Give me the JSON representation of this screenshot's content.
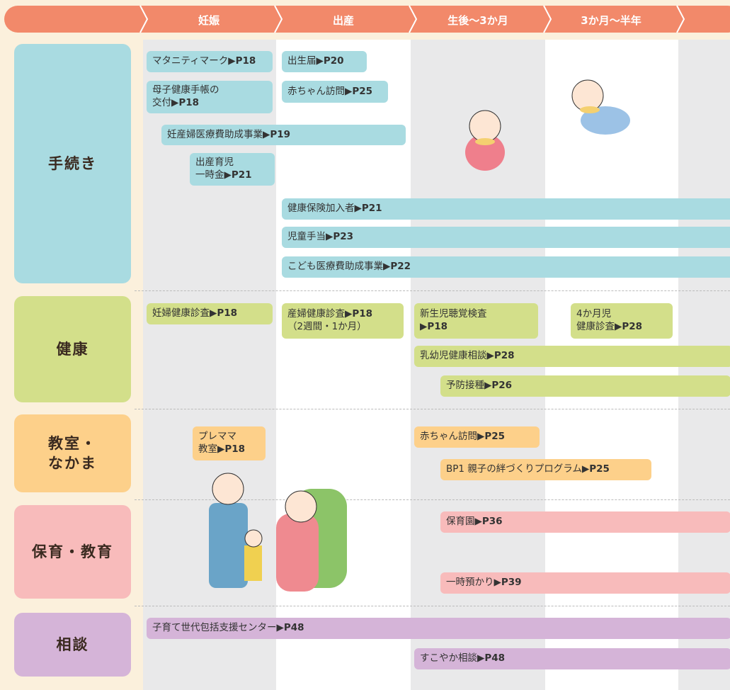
{
  "header": {
    "columns": [
      "妊娠",
      "出産",
      "生後～3か月",
      "3か月～半年"
    ]
  },
  "rows": [
    {
      "label": "手続き",
      "items": [
        {
          "text": "マタニティマーク",
          "ref": "▶P18"
        },
        {
          "text": "出生届",
          "ref": "▶P20"
        },
        {
          "text": "母子健康手帳の\n交付",
          "ref": "▶P18"
        },
        {
          "text": "赤ちゃん訪問",
          "ref": "▶P25"
        },
        {
          "text": "妊産婦医療費助成事業",
          "ref": "▶P19"
        },
        {
          "text": "出産育児\n一時金",
          "ref": "▶P21"
        },
        {
          "text": "健康保険加入者",
          "ref": "▶P21"
        },
        {
          "text": "児童手当",
          "ref": "▶P23"
        },
        {
          "text": "こども医療費助成事業",
          "ref": "▶P22"
        }
      ]
    },
    {
      "label": "健康",
      "items": [
        {
          "text": "妊婦健康診査",
          "ref": "▶P18"
        },
        {
          "text": "産婦健康診査",
          "ref": "▶P18",
          "note": "（2週間・1か月）"
        },
        {
          "text": "新生児聴覚検査\n",
          "ref": "▶P18"
        },
        {
          "text": "4か月児\n健康診査",
          "ref": "▶P28"
        },
        {
          "text": "乳幼児健康相談",
          "ref": "▶P28"
        },
        {
          "text": "予防接種",
          "ref": "▶P26"
        }
      ]
    },
    {
      "label": "教室・\nなかま",
      "items": [
        {
          "text": "プレママ\n教室",
          "ref": "▶P18"
        },
        {
          "text": "赤ちゃん訪問",
          "ref": "▶P25"
        },
        {
          "text": "BP1 親子の絆づくりプログラム",
          "ref": "▶P25"
        }
      ]
    },
    {
      "label": "保育・教育",
      "items": [
        {
          "text": "保育園",
          "ref": "▶P36"
        },
        {
          "text": "一時預かり",
          "ref": "▶P39"
        }
      ]
    },
    {
      "label": "相談",
      "items": [
        {
          "text": "子育て世代包括支援センター",
          "ref": "▶P48"
        },
        {
          "text": "すこやか相談",
          "ref": "▶P48"
        }
      ]
    }
  ]
}
